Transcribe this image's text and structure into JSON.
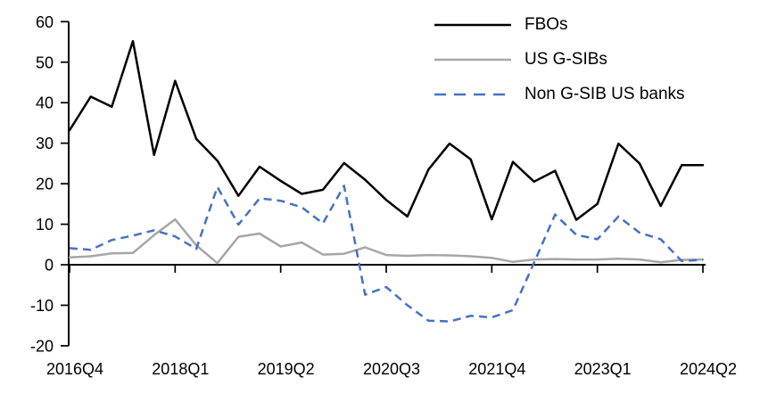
{
  "chart_data": {
    "type": "line",
    "title": "",
    "xlabel": "",
    "ylabel": "",
    "ylim": [
      -20,
      60
    ],
    "y_ticks": [
      60,
      50,
      40,
      30,
      20,
      10,
      0,
      -10,
      -20
    ],
    "x_tick_labels": [
      "2016Q4",
      "2018Q1",
      "2019Q2",
      "2020Q3",
      "2021Q4",
      "2023Q1",
      "2024Q2"
    ],
    "x_tick_indices": [
      0,
      5,
      10,
      15,
      20,
      25,
      30
    ],
    "grid": false,
    "legend_position": "top-right",
    "categories": [
      "2016Q4",
      "2017Q1",
      "2017Q2",
      "2017Q3",
      "2017Q4",
      "2018Q1",
      "2018Q2",
      "2018Q3",
      "2018Q4",
      "2019Q1",
      "2019Q2",
      "2019Q3",
      "2019Q4",
      "2020Q1",
      "2020Q2",
      "2020Q3",
      "2020Q4",
      "2021Q1",
      "2021Q2",
      "2021Q3",
      "2021Q4",
      "2022Q1",
      "2022Q2",
      "2022Q3",
      "2022Q4",
      "2023Q1",
      "2023Q2",
      "2023Q3",
      "2023Q4",
      "2024Q1",
      "2024Q2"
    ],
    "series": [
      {
        "name": "FBOs",
        "color": "#000000",
        "style": "solid",
        "values": [
          33.2,
          41.5,
          39.0,
          55.2,
          27.1,
          45.4,
          31.1,
          25.7,
          17.0,
          24.2,
          20.7,
          17.5,
          18.5,
          25.1,
          21.0,
          16.0,
          11.9,
          23.5,
          29.9,
          26.0,
          11.2,
          25.4,
          20.5,
          23.2,
          11.1,
          15.0,
          29.9,
          25.0,
          14.5,
          24.6,
          24.6
        ]
      },
      {
        "name": "US G-SIBs",
        "color": "#a6a6a6",
        "style": "solid",
        "values": [
          1.8,
          2.1,
          2.8,
          2.9,
          7.3,
          11.2,
          4.8,
          0.4,
          6.9,
          7.7,
          4.5,
          5.5,
          2.5,
          2.7,
          4.3,
          2.4,
          2.2,
          2.4,
          2.3,
          2.1,
          1.7,
          0.7,
          1.3,
          1.4,
          1.3,
          1.3,
          1.5,
          1.3,
          0.6,
          1.2,
          1.3
        ]
      },
      {
        "name": "Non G-SIB US banks",
        "color": "#4472c4",
        "style": "dashed",
        "values": [
          4.1,
          3.7,
          6.1,
          7.2,
          8.5,
          7.0,
          3.9,
          19.2,
          9.9,
          16.4,
          15.8,
          14.2,
          10.2,
          19.5,
          -7.4,
          -5.5,
          -10.0,
          -13.8,
          -14.0,
          -12.6,
          -13.0,
          -11.2,
          0.5,
          12.4,
          7.4,
          6.3,
          11.9,
          7.9,
          6.3,
          0.9,
          1.2
        ]
      }
    ]
  }
}
